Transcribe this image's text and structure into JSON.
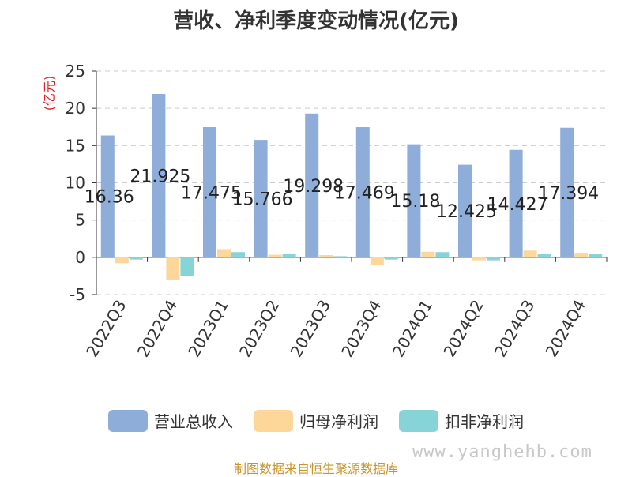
{
  "chart_data": {
    "type": "bar",
    "title": "营收、净利季度变动情况(亿元)",
    "ylabel": "(亿元)",
    "ylim": [
      -5,
      25
    ],
    "yticks": [
      -5,
      0,
      5,
      10,
      15,
      20,
      25
    ],
    "grid": true,
    "legend_position": "bottom",
    "categories": [
      "2022Q3",
      "2022Q4",
      "2023Q1",
      "2023Q2",
      "2023Q3",
      "2023Q4",
      "2024Q1",
      "2024Q2",
      "2024Q3",
      "2024Q4"
    ],
    "series": [
      {
        "name": "营业总收入",
        "color": "#8eadd9",
        "values": [
          16.36,
          21.925,
          17.475,
          15.766,
          19.298,
          17.469,
          15.18,
          12.425,
          14.427,
          17.394
        ],
        "labels": [
          "16.36",
          "21.925",
          "17.475",
          "15.766",
          "19.298",
          "17.469",
          "15.18",
          "12.425",
          "14.427",
          "17.394"
        ]
      },
      {
        "name": "归母净利润",
        "color": "#fdd69a",
        "values": [
          -0.8,
          -3.0,
          1.1,
          0.35,
          0.3,
          -1.0,
          0.75,
          -0.4,
          0.9,
          0.6
        ]
      },
      {
        "name": "扣非净利润",
        "color": "#86d4d8",
        "values": [
          -0.3,
          -2.5,
          0.7,
          0.45,
          0.15,
          -0.3,
          0.7,
          -0.4,
          0.5,
          0.4
        ]
      }
    ]
  },
  "footer": {
    "watermark": "www.yanghehb.com",
    "source": "制图数据来自恒生聚源数据库"
  }
}
